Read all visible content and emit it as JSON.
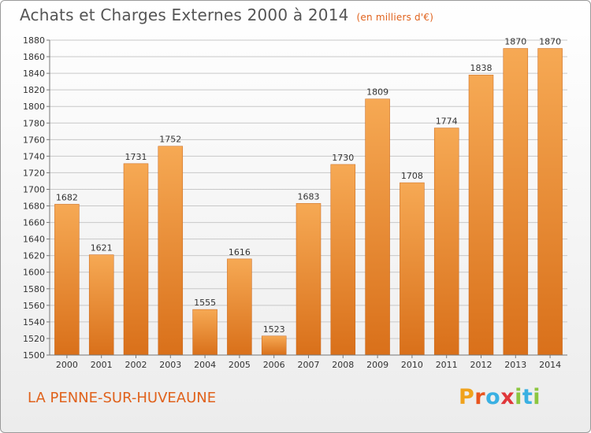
{
  "header": {
    "title": "Achats et Charges Externes 2000 à 2014",
    "unit": "(en milliers d'€)"
  },
  "footer": {
    "location": "LA PENNE-SUR-HUVEAUNE",
    "logo_letters": [
      "P",
      "r",
      "o",
      "x",
      "i",
      "t",
      "i"
    ],
    "logo_colors": [
      "#f0a21c",
      "#e8551f",
      "#3ab0e2",
      "#e0373a",
      "#8cc63f",
      "#3ab0e2",
      "#8cc63f"
    ]
  },
  "colors": {
    "bar_light": "#f6a954",
    "bar_dark": "#d9701a",
    "grid": "#c8c8c8",
    "axis": "#777777",
    "accent": "#e0621c"
  },
  "chart_data": {
    "type": "bar",
    "title": "Achats et Charges Externes 2000 à 2014",
    "subtitle": "(en milliers d'€)",
    "xlabel": "",
    "ylabel": "",
    "categories": [
      "2000",
      "2001",
      "2002",
      "2003",
      "2004",
      "2005",
      "2006",
      "2007",
      "2008",
      "2009",
      "2010",
      "2011",
      "2012",
      "2013",
      "2014"
    ],
    "values": [
      1682,
      1621,
      1731,
      1752,
      1555,
      1616,
      1523,
      1683,
      1730,
      1809,
      1708,
      1774,
      1838,
      1870,
      1870
    ],
    "ylim": [
      1500,
      1880
    ],
    "yticks": [
      1500,
      1520,
      1540,
      1560,
      1580,
      1600,
      1620,
      1640,
      1660,
      1680,
      1700,
      1720,
      1740,
      1760,
      1780,
      1800,
      1820,
      1840,
      1860,
      1880
    ],
    "grid": true,
    "legend": "none"
  }
}
